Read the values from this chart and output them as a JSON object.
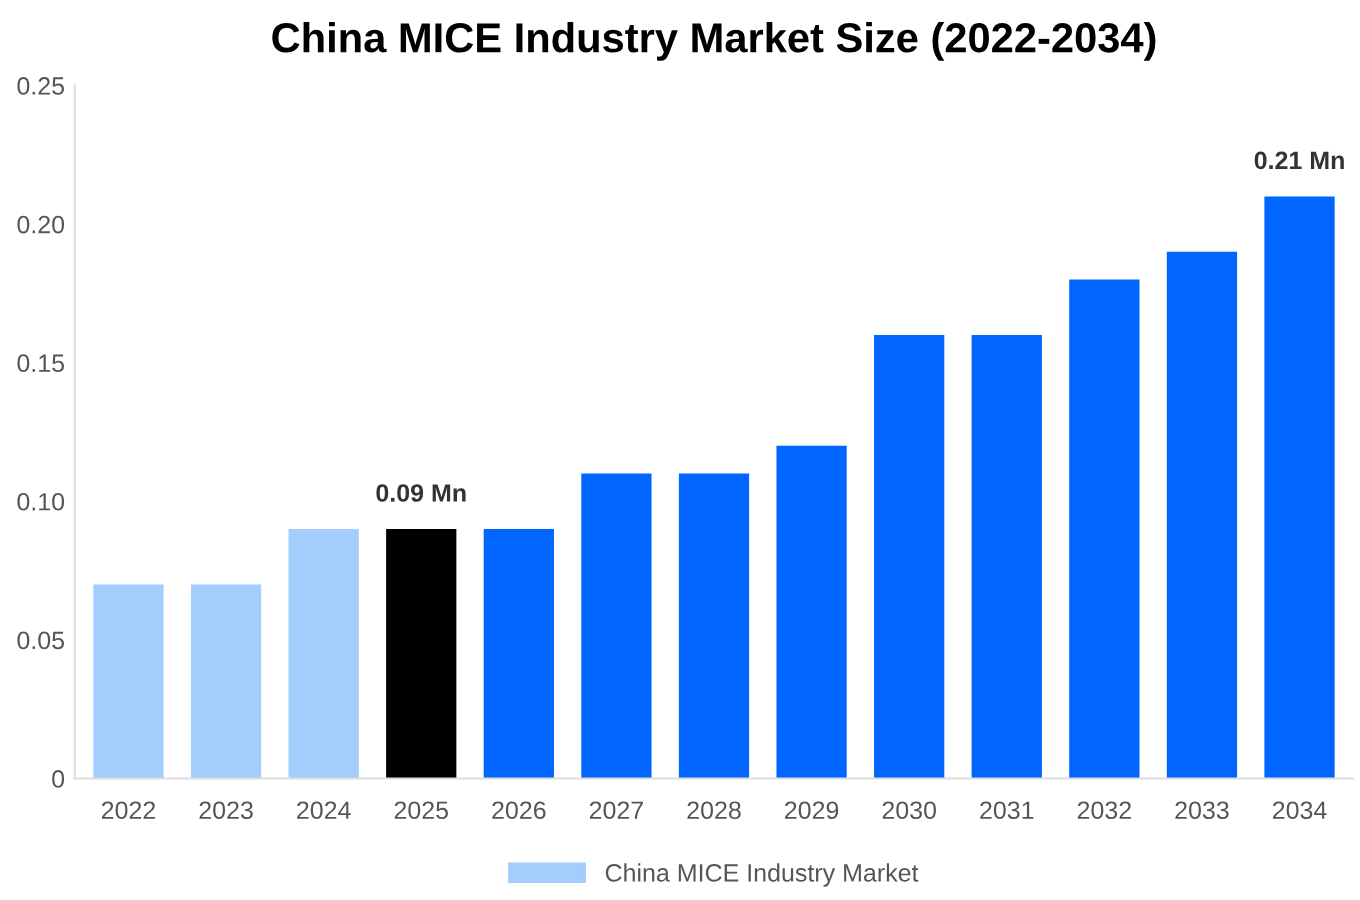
{
  "chart_data": {
    "type": "bar",
    "title": "China MICE Industry Market Size (2022-2034)",
    "categories": [
      "2022",
      "2023",
      "2024",
      "2025",
      "2026",
      "2027",
      "2028",
      "2029",
      "2030",
      "2031",
      "2032",
      "2033",
      "2034"
    ],
    "series": [
      {
        "name": "China MICE Industry Market",
        "color": "#a3cdfd",
        "colors": [
          "#a3cdfd",
          "#a3cdfd",
          "#a3cdfd",
          "#000000",
          "#0066ff",
          "#0066ff",
          "#0066ff",
          "#0066ff",
          "#0066ff",
          "#0066ff",
          "#0066ff",
          "#0066ff",
          "#0066ff"
        ],
        "values": [
          0.07,
          0.07,
          0.09,
          0.09,
          0.09,
          0.11,
          0.11,
          0.12,
          0.16,
          0.16,
          0.18,
          0.19,
          0.21
        ],
        "value_labels": [
          null,
          null,
          null,
          "0.09 Mn",
          null,
          null,
          null,
          null,
          null,
          null,
          null,
          null,
          "0.21 Mn"
        ]
      }
    ],
    "ylim": [
      0,
      0.25
    ],
    "yticks": [
      {
        "value": 0,
        "label": "0"
      },
      0.05,
      {
        "value": 0.1,
        "label": "0.10"
      },
      0.15,
      {
        "value": 0.2,
        "label": "0.20"
      },
      0.25
    ],
    "grid": false,
    "legend": "bottom"
  }
}
